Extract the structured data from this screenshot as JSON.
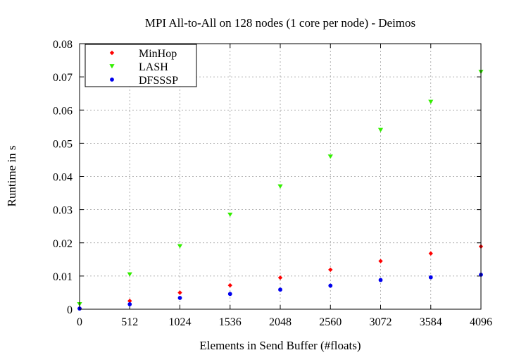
{
  "chart_data": {
    "type": "scatter",
    "title": "MPI All-to-All on 128 nodes (1 core per node)  -  Deimos",
    "xlabel": "Elements in Send Buffer (#floats)",
    "ylabel": "Runtime in s",
    "xlim": [
      0,
      4096
    ],
    "ylim": [
      0,
      0.08
    ],
    "xticks": [
      0,
      512,
      1024,
      1536,
      2048,
      2560,
      3072,
      3584,
      4096
    ],
    "yticks": [
      0,
      0.01,
      0.02,
      0.03,
      0.04,
      0.05,
      0.06,
      0.07,
      0.08
    ],
    "xtick_labels": [
      "0",
      "512",
      "1024",
      "1536",
      "2048",
      "2560",
      "3072",
      "3584",
      "4096"
    ],
    "ytick_labels": [
      "0",
      "0.01",
      "0.02",
      "0.03",
      "0.04",
      "0.05",
      "0.06",
      "0.07",
      "0.08"
    ],
    "grid": true,
    "legend_position": "top-left",
    "series": [
      {
        "name": "MinHop",
        "color": "#ff0000",
        "marker": "diamond",
        "x": [
          0,
          512,
          1024,
          1536,
          2048,
          2560,
          3072,
          3584,
          4096
        ],
        "y": [
          0.0003,
          0.0025,
          0.005,
          0.0072,
          0.0095,
          0.0119,
          0.0145,
          0.0168,
          0.0189
        ]
      },
      {
        "name": "LASH",
        "color": "#33ee00",
        "marker": "triangle-down",
        "x": [
          0,
          512,
          1024,
          1536,
          2048,
          2560,
          3072,
          3584,
          4096
        ],
        "y": [
          0.0015,
          0.0105,
          0.019,
          0.0285,
          0.037,
          0.046,
          0.054,
          0.0625,
          0.0715
        ]
      },
      {
        "name": "DFSSSP",
        "color": "#0000ee",
        "marker": "circle",
        "x": [
          0,
          512,
          1024,
          1536,
          2048,
          2560,
          3072,
          3584,
          4096
        ],
        "y": [
          0.0002,
          0.0015,
          0.0034,
          0.0046,
          0.0059,
          0.0071,
          0.0088,
          0.0096,
          0.0104
        ]
      }
    ]
  }
}
